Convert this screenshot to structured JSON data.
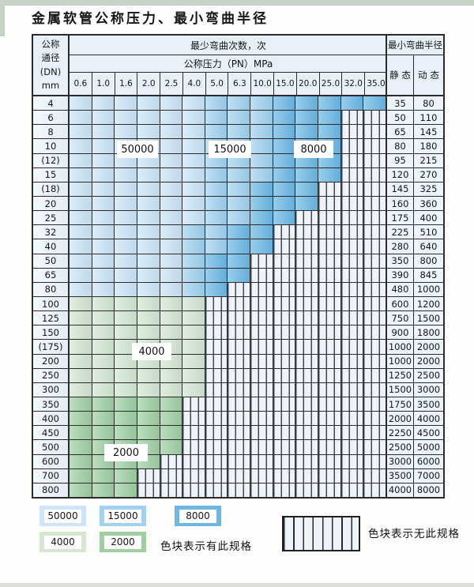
{
  "title": "金属软管公称压力、最小弯曲半径",
  "table": {
    "corner_header": {
      "line1": "公称",
      "line2": "通径",
      "line3": "(DN)",
      "line4": "mm"
    },
    "bend_cycles_header": "最少弯曲次数，次",
    "pressure_header": "公称压力（PN）MPa",
    "radius_header": "最小弯曲半径",
    "static_header": "静 态",
    "dynamic_header": "动 态",
    "pressure_columns": [
      "0.6",
      "1.0",
      "1.6",
      "2.0",
      "2.5",
      "4.0",
      "5.0",
      "6.3",
      "10.0",
      "15.0",
      "20.0",
      "25.0",
      "32.0",
      "35.0"
    ],
    "cell_code_legend": {
      "1": "50000",
      "2": "15000",
      "3": "8000",
      "4": "4000",
      "5": "2000",
      "h": "no-spec-hatched"
    },
    "rows": [
      {
        "dn": "4",
        "cells": "11111122233333",
        "static": "35",
        "dynamic": "80"
      },
      {
        "dn": "6",
        "cells": "111111222333hh",
        "static": "50",
        "dynamic": "110"
      },
      {
        "dn": "8",
        "cells": "111111222333hh",
        "static": "65",
        "dynamic": "145"
      },
      {
        "dn": "10",
        "cells": "111111222333hh",
        "static": "80",
        "dynamic": "180"
      },
      {
        "dn": "(12)",
        "cells": "111111222333hh",
        "static": "95",
        "dynamic": "215"
      },
      {
        "dn": "15",
        "cells": "111111222333hh",
        "static": "120",
        "dynamic": "270"
      },
      {
        "dn": "(18)",
        "cells": "11111122333hhh",
        "static": "145",
        "dynamic": "325"
      },
      {
        "dn": "20",
        "cells": "11111122333hhh",
        "static": "160",
        "dynamic": "360"
      },
      {
        "dn": "25",
        "cells": "1111112233hhhh",
        "static": "175",
        "dynamic": "400"
      },
      {
        "dn": "32",
        "cells": "111112233hhhhh",
        "static": "225",
        "dynamic": "510"
      },
      {
        "dn": "40",
        "cells": "111112233hhhhh",
        "static": "280",
        "dynamic": "640"
      },
      {
        "dn": "50",
        "cells": "11111233hhhhhh",
        "static": "350",
        "dynamic": "800"
      },
      {
        "dn": "65",
        "cells": "11111233hhhhhh",
        "static": "390",
        "dynamic": "845"
      },
      {
        "dn": "80",
        "cells": "1111123hhhhhhh",
        "static": "480",
        "dynamic": "1000"
      },
      {
        "dn": "100",
        "cells": "444444hhhhhhhh",
        "static": "600",
        "dynamic": "1200"
      },
      {
        "dn": "125",
        "cells": "444444hhhhhhhh",
        "static": "750",
        "dynamic": "1500"
      },
      {
        "dn": "150",
        "cells": "444444hhhhhhhh",
        "static": "900",
        "dynamic": "1800"
      },
      {
        "dn": "(175)",
        "cells": "444444hhhhhhhh",
        "static": "1000",
        "dynamic": "2000"
      },
      {
        "dn": "200",
        "cells": "444444hhhhhhhh",
        "static": "1000",
        "dynamic": "2000"
      },
      {
        "dn": "250",
        "cells": "444444hhhhhhhh",
        "static": "1250",
        "dynamic": "2500"
      },
      {
        "dn": "300",
        "cells": "444444hhhhhhhh",
        "static": "1500",
        "dynamic": "3000"
      },
      {
        "dn": "350",
        "cells": "55555hhhhhhhhh",
        "static": "1750",
        "dynamic": "3500"
      },
      {
        "dn": "400",
        "cells": "55555hhhhhhhhh",
        "static": "2000",
        "dynamic": "4000"
      },
      {
        "dn": "450",
        "cells": "55555hhhhhhhhh",
        "static": "2250",
        "dynamic": "4500"
      },
      {
        "dn": "500",
        "cells": "55555hhhhhhhhh",
        "static": "2500",
        "dynamic": "5000"
      },
      {
        "dn": "600",
        "cells": "5555hhhhhhhhhh",
        "static": "3000",
        "dynamic": "6000"
      },
      {
        "dn": "700",
        "cells": "555hhhhhhhhhhh",
        "static": "3500",
        "dynamic": "7000"
      },
      {
        "dn": "800",
        "cells": "555hhhhhhhhhhh",
        "static": "4000",
        "dynamic": "8000"
      }
    ]
  },
  "overlay_labels": [
    {
      "text": "50000"
    },
    {
      "text": "15000"
    },
    {
      "text": "8000"
    },
    {
      "text": "4000"
    },
    {
      "text": "2000"
    }
  ],
  "legend": {
    "items": [
      {
        "value": "50000",
        "color": "#cde5f6"
      },
      {
        "value": "15000",
        "color": "#a2d2ef"
      },
      {
        "value": "8000",
        "color": "#6cb8e4"
      },
      {
        "value": "4000",
        "color": "#d5e7d1"
      },
      {
        "value": "2000",
        "color": "#9fcfa1"
      }
    ],
    "has_spec_text": "色块表示有此规格",
    "no_spec_text": "色块表示无此规格"
  },
  "colors": {
    "blue_50000": "#cde5f6",
    "blue_15000": "#a2d2ef",
    "blue_8000": "#6cb8e4",
    "green_4000": "#d5e7d1",
    "green_2000": "#9fcfa1",
    "hatch_bg": "#eef3fa",
    "hatch_line": "#44474d",
    "border": "#2b2b2b",
    "header_bg": "#e8f1f9",
    "row_label_bg": "#ecf3fa"
  }
}
